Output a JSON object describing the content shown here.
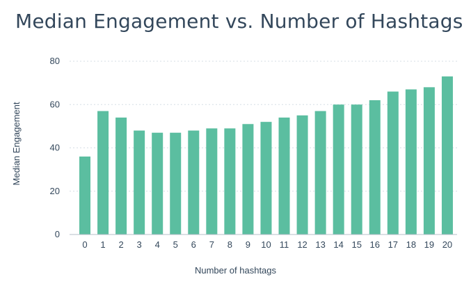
{
  "chart_data": {
    "type": "bar",
    "title": "Median Engagement vs. Number of Hashtags",
    "xlabel": "Number of hashtags",
    "ylabel": "Median Engagement",
    "categories": [
      "0",
      "1",
      "2",
      "3",
      "4",
      "5",
      "6",
      "7",
      "8",
      "9",
      "10",
      "11",
      "12",
      "13",
      "14",
      "15",
      "16",
      "17",
      "18",
      "19",
      "20"
    ],
    "values": [
      36,
      57,
      54,
      48,
      47,
      47,
      48,
      49,
      49,
      51,
      52,
      54,
      55,
      57,
      60,
      60,
      62,
      66,
      67,
      68,
      73
    ],
    "ylim": [
      0,
      80
    ],
    "yticks": [
      0,
      20,
      40,
      60,
      80
    ],
    "grid": true,
    "colors": {
      "bar": "#5bbea0",
      "text": "#33475b",
      "grid": "#d5dde5",
      "axis": "#b5bfc9"
    }
  }
}
